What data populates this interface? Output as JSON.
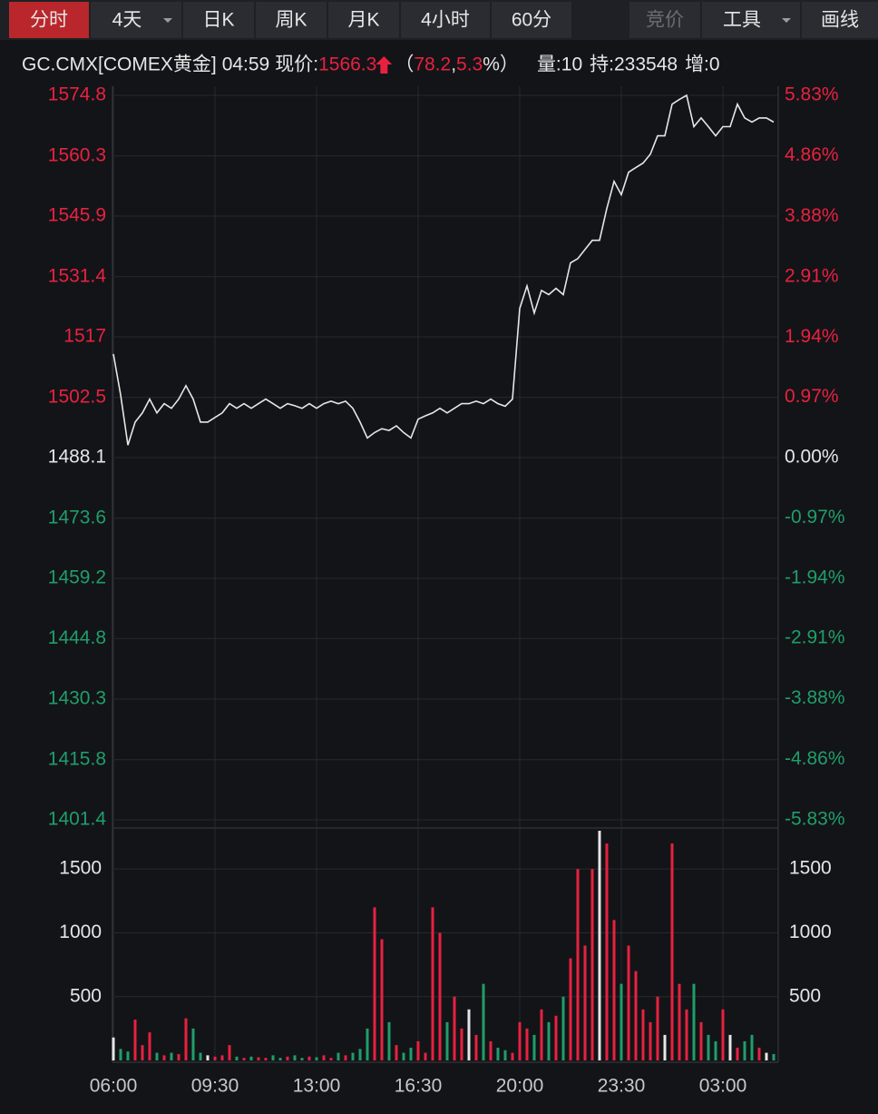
{
  "toolbar": {
    "tabs": [
      "分时",
      "4天",
      "日K",
      "周K",
      "月K",
      "4小时",
      "60分",
      "竞价",
      "工具",
      "画线"
    ]
  },
  "header": {
    "symbol": "GC.CMX[COMEX黄金]",
    "time": "04:59",
    "price_label": "现价:",
    "price": "1566.3",
    "open_paren": "（",
    "change": "78.2",
    "sep": ",",
    "change_pct": "5.3",
    "close_paren": "%）",
    "volume": "量:10",
    "hold": "持:233548",
    "increase": "增:0"
  },
  "chart_data": [
    {
      "type": "line",
      "color": "#e6e6e6",
      "up_color": "#e8213f",
      "down_color": "#1f9e6a",
      "grid": true,
      "categories": [
        "06:00",
        null,
        null,
        null,
        null,
        null,
        null,
        null,
        null,
        null,
        null,
        null,
        null,
        null,
        "09:30",
        null,
        null,
        null,
        null,
        null,
        null,
        null,
        null,
        null,
        null,
        null,
        null,
        null,
        "13:00",
        null,
        null,
        null,
        null,
        null,
        null,
        null,
        null,
        null,
        null,
        null,
        null,
        null,
        "16:30",
        null,
        null,
        null,
        null,
        null,
        null,
        null,
        null,
        null,
        null,
        null,
        null,
        null,
        "20:00",
        null,
        null,
        null,
        null,
        null,
        null,
        null,
        null,
        null,
        null,
        null,
        null,
        null,
        "23:30",
        null,
        null,
        null,
        null,
        null,
        null,
        null,
        null,
        null,
        null,
        null,
        null,
        null,
        "03:00",
        null,
        null,
        null,
        null,
        null,
        null,
        null
      ],
      "values": [
        1512.9,
        1503.1,
        1491.1,
        1496.6,
        1498.8,
        1502.1,
        1498.8,
        1501.0,
        1499.9,
        1502.1,
        1505.3,
        1502.1,
        1496.6,
        1496.6,
        1497.7,
        1498.8,
        1501.0,
        1499.9,
        1501.0,
        1499.9,
        1501.0,
        1502.1,
        1501.0,
        1499.9,
        1501.0,
        1500.5,
        1499.9,
        1501.0,
        1499.9,
        1501.0,
        1501.6,
        1501.0,
        1501.6,
        1499.9,
        1496.6,
        1492.8,
        1494.1,
        1495.0,
        1494.6,
        1495.7,
        1494.1,
        1492.8,
        1497.3,
        1498.1,
        1498.8,
        1499.9,
        1498.8,
        1499.9,
        1501.0,
        1501.0,
        1501.6,
        1501.0,
        1502.1,
        1501.0,
        1500.4,
        1502.1,
        1523.8,
        1529.2,
        1522.7,
        1528.1,
        1527.1,
        1528.6,
        1527.1,
        1534.7,
        1535.7,
        1537.9,
        1540.1,
        1540.1,
        1547.7,
        1554.2,
        1551.0,
        1556.4,
        1557.5,
        1558.6,
        1560.7,
        1565.1,
        1565.1,
        1572.7,
        1573.8,
        1574.8,
        1567.3,
        1569.4,
        1567.3,
        1565.1,
        1567.3,
        1567.3,
        1572.7,
        1569.4,
        1568.4,
        1569.4,
        1569.4,
        1568.4
      ],
      "ylim": [
        1401.4,
        1574.8
      ],
      "yticks": [
        1574.8,
        1560.3,
        1545.9,
        1531.4,
        1517.0,
        1502.5,
        1488.1,
        1473.6,
        1459.2,
        1444.8,
        1430.3,
        1415.8,
        1401.4
      ],
      "y2lim": [
        -5.83,
        5.83
      ],
      "y2ticks": [
        {
          "value": 5.83,
          "label": "5.83%"
        },
        {
          "value": 4.86,
          "label": "4.86%"
        },
        {
          "value": 3.88,
          "label": "3.88%"
        },
        {
          "value": 2.91,
          "label": "2.91%"
        },
        {
          "value": 1.94,
          "label": "1.94%"
        },
        {
          "value": 0.97,
          "label": "0.97%"
        },
        {
          "value": 0,
          "label": "0.00%"
        },
        {
          "value": -0.97,
          "label": "-0.97%"
        },
        {
          "value": -1.94,
          "label": "-1.94%"
        },
        {
          "value": -2.91,
          "label": "-2.91%"
        },
        {
          "value": -3.88,
          "label": "-3.88%"
        },
        {
          "value": -4.86,
          "label": "-4.86%"
        },
        {
          "value": -5.83,
          "label": "-5.83%"
        }
      ]
    },
    {
      "type": "bar",
      "up_color": "#e8213f",
      "down_color": "#1f9e6a",
      "flat_color": "#e6e6e6",
      "values": [
        180,
        90,
        70,
        320,
        120,
        220,
        60,
        40,
        60,
        50,
        330,
        250,
        60,
        40,
        30,
        40,
        120,
        30,
        20,
        30,
        25,
        20,
        40,
        20,
        30,
        40,
        20,
        30,
        25,
        40,
        20,
        60,
        40,
        60,
        90,
        250,
        1200,
        950,
        300,
        120,
        60,
        100,
        150,
        60,
        1200,
        1000,
        300,
        500,
        250,
        400,
        200,
        600,
        150,
        100,
        80,
        60,
        300,
        250,
        200,
        400,
        300,
        350,
        500,
        800,
        1500,
        900,
        1500,
        1800,
        1700,
        1100,
        600,
        900,
        700,
        400,
        300,
        500,
        200,
        1700,
        600,
        400,
        600,
        300,
        200,
        150,
        400,
        200,
        100,
        150,
        200,
        100,
        60,
        50
      ],
      "ylim": [
        0,
        1800
      ],
      "yticks": [
        500,
        1000,
        1500
      ]
    }
  ]
}
